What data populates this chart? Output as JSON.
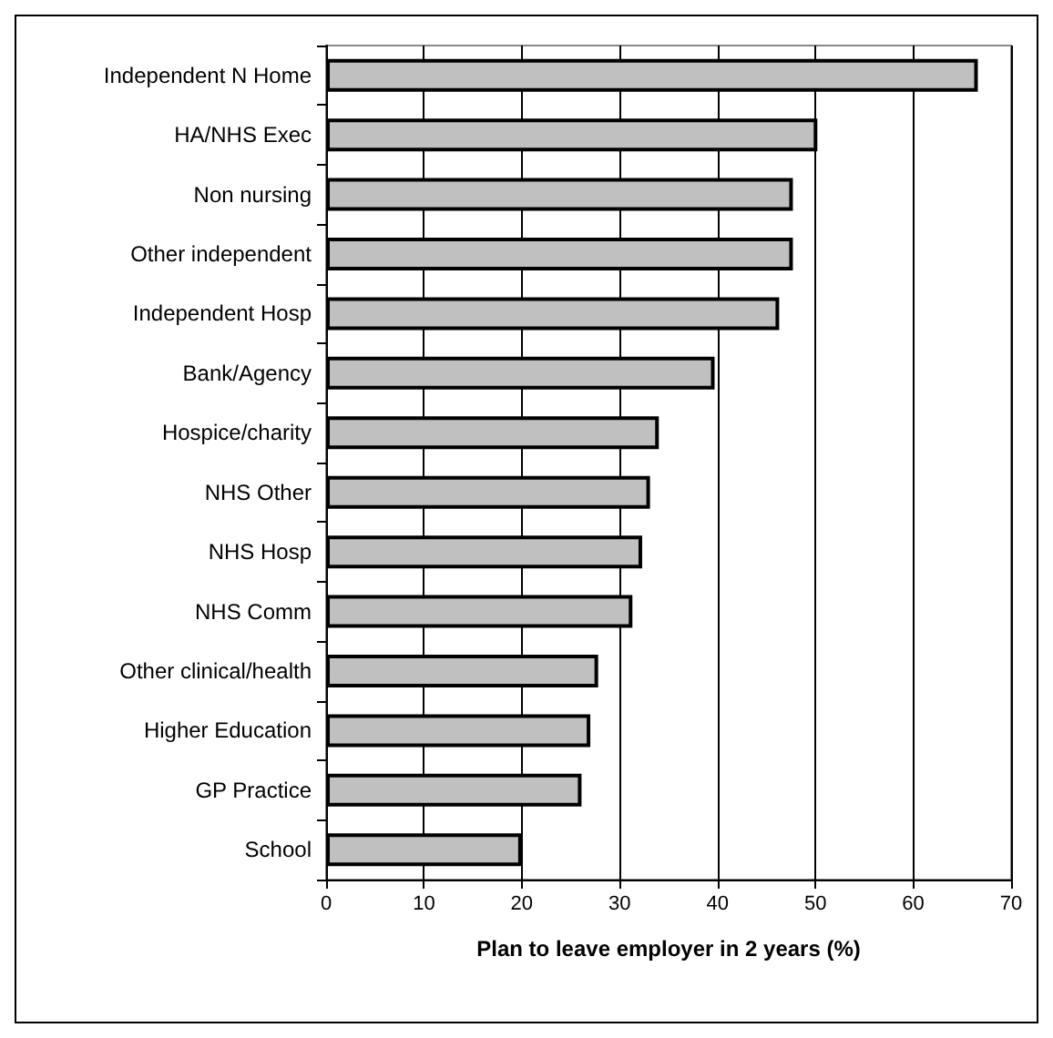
{
  "chart_data": {
    "type": "bar",
    "orientation": "horizontal",
    "xlabel": "Plan to leave employer in 2 years (%)",
    "categories": [
      "Independent N Home",
      "HA/NHS Exec",
      "Non nursing",
      "Other independent",
      "Independent Hosp",
      "Bank/Agency",
      "Hospice/charity",
      "NHS Other",
      "NHS Hosp",
      "NHS Comm",
      "Other clinical/health",
      "Higher Education",
      "GP Practice",
      "School"
    ],
    "values": [
      66.6,
      50.2,
      47.7,
      47.7,
      46.3,
      39.7,
      34.0,
      33.1,
      32.3,
      31.3,
      27.8,
      27.0,
      26.1,
      20.0
    ],
    "color": "#c0c0c0",
    "xlim": [
      0,
      70
    ],
    "xticks": [
      0,
      10,
      20,
      30,
      40,
      50,
      60,
      70
    ],
    "grid": "x"
  }
}
